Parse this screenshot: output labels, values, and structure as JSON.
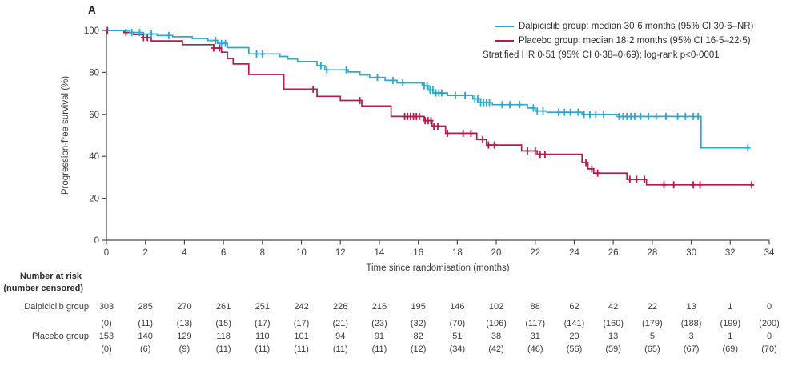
{
  "panel_label": "A",
  "colors": {
    "dalpiciclib": "#2aa8cd",
    "placebo": "#b81950",
    "axis": "#4a4a4a",
    "text": "#3b3b3b"
  },
  "legend": {
    "items": [
      {
        "label": "Dalpiciclib group: median 30·6 months (95% CI 30·6–NR)",
        "color_key": "dalpiciclib"
      },
      {
        "label": "Placebo group: median 18·2 months (95% CI 16·5–22·5)",
        "color_key": "placebo"
      }
    ],
    "note": "Stratified HR 0·51 (95% CI 0·38–0·69); log-rank p<0·0001"
  },
  "chart_data": {
    "type": "line",
    "subtype": "kaplan-meier-step",
    "title": "",
    "xlabel": "Time since randomisation (months)",
    "ylabel": "Progression-free survival (%)",
    "xlim": [
      0,
      34
    ],
    "ylim": [
      0,
      100
    ],
    "xticks": [
      0,
      2,
      4,
      6,
      8,
      10,
      12,
      14,
      16,
      18,
      20,
      22,
      24,
      26,
      28,
      30,
      32,
      34
    ],
    "yticks": [
      0,
      20,
      40,
      60,
      80,
      100
    ],
    "grid": false,
    "legend_position": "top-right",
    "series": [
      {
        "name": "Dalpiciclib group",
        "color_key": "dalpiciclib",
        "median_months": "30·6",
        "ci": "30·6–NR",
        "steps": [
          [
            0,
            100
          ],
          [
            1.2,
            99
          ],
          [
            1.9,
            98.3
          ],
          [
            2.6,
            97.6
          ],
          [
            3.4,
            97
          ],
          [
            4.4,
            96.2
          ],
          [
            5.2,
            95.2
          ],
          [
            5.7,
            93.8
          ],
          [
            6.2,
            91.8
          ],
          [
            7.3,
            88.8
          ],
          [
            8.9,
            87.6
          ],
          [
            9.3,
            86.4
          ],
          [
            9.8,
            85.2
          ],
          [
            10.8,
            83.2
          ],
          [
            11.2,
            81.2
          ],
          [
            12.4,
            80.2
          ],
          [
            13,
            78.8
          ],
          [
            13.5,
            77.6
          ],
          [
            14.3,
            76.2
          ],
          [
            14.9,
            75
          ],
          [
            16.2,
            73.6
          ],
          [
            16.5,
            71.6
          ],
          [
            16.9,
            70.2
          ],
          [
            17.5,
            69
          ],
          [
            18.8,
            67.4
          ],
          [
            19.2,
            65.6
          ],
          [
            19.8,
            64.6
          ],
          [
            21.6,
            63
          ],
          [
            22,
            61.6
          ],
          [
            22.6,
            61
          ],
          [
            24.4,
            60
          ],
          [
            26.3,
            59
          ],
          [
            30.5,
            44
          ],
          [
            33,
            44
          ]
        ],
        "censor_times": [
          1.3,
          1.7,
          2.3,
          3.2,
          5.6,
          5.9,
          6.1,
          7.7,
          8.0,
          11.0,
          11.3,
          12.3,
          13.9,
          14.7,
          15.2,
          16.3,
          16.45,
          16.6,
          16.75,
          16.9,
          17.05,
          17.2,
          17.9,
          18.4,
          18.9,
          19.05,
          19.2,
          19.35,
          19.5,
          19.65,
          20.3,
          20.7,
          21.2,
          21.9,
          22.1,
          22.4,
          23.2,
          23.5,
          23.8,
          24.2,
          24.5,
          24.8,
          25.1,
          25.5,
          26.3,
          26.5,
          26.7,
          26.9,
          27.1,
          27.4,
          27.8,
          28.2,
          28.7,
          29.3,
          29.7,
          30.1,
          30.35,
          32.9
        ]
      },
      {
        "name": "Placebo group",
        "color_key": "placebo",
        "median_months": "18·2",
        "ci": "16·5–22·5",
        "steps": [
          [
            0,
            100
          ],
          [
            0.9,
            99
          ],
          [
            1.4,
            98
          ],
          [
            1.9,
            96.6
          ],
          [
            2.3,
            95
          ],
          [
            3.9,
            93.2
          ],
          [
            5.5,
            91.6
          ],
          [
            5.9,
            89.6
          ],
          [
            6.2,
            86.6
          ],
          [
            6.5,
            84
          ],
          [
            7.3,
            79
          ],
          [
            9.1,
            72
          ],
          [
            10.8,
            68.6
          ],
          [
            12,
            66.6
          ],
          [
            13.1,
            64
          ],
          [
            14.6,
            59
          ],
          [
            16.3,
            57
          ],
          [
            16.7,
            54.4
          ],
          [
            17.4,
            51
          ],
          [
            19,
            48
          ],
          [
            19.5,
            45.4
          ],
          [
            21.3,
            42.6
          ],
          [
            22.1,
            41
          ],
          [
            24.4,
            37
          ],
          [
            24.7,
            34
          ],
          [
            25,
            32
          ],
          [
            26.7,
            29
          ],
          [
            27.7,
            26.4
          ],
          [
            33.1,
            26.4
          ]
        ],
        "censor_times": [
          0.05,
          1.0,
          1.9,
          2.1,
          5.5,
          5.8,
          10.6,
          13.0,
          15.3,
          15.45,
          15.6,
          15.75,
          15.9,
          16.05,
          16.35,
          16.5,
          16.65,
          16.8,
          17.0,
          17.5,
          18.3,
          18.7,
          19.3,
          19.6,
          19.9,
          21.6,
          22.0,
          22.25,
          22.5,
          24.6,
          24.9,
          25.2,
          26.85,
          27.2,
          27.6,
          28.6,
          29.1,
          30.1,
          30.45,
          33.1
        ]
      }
    ]
  },
  "risk_table": {
    "title": "Number at risk",
    "subtitle": "(number censored)",
    "timepoints": [
      0,
      2,
      4,
      6,
      8,
      10,
      12,
      14,
      16,
      18,
      20,
      22,
      24,
      26,
      28,
      30,
      32,
      34
    ],
    "rows": [
      {
        "label": "Dalpiciclib group",
        "at_risk": [
          303,
          285,
          270,
          261,
          251,
          242,
          226,
          216,
          195,
          146,
          102,
          88,
          62,
          42,
          22,
          13,
          1,
          0
        ],
        "censored": [
          0,
          11,
          13,
          15,
          17,
          17,
          21,
          23,
          32,
          70,
          106,
          117,
          141,
          160,
          179,
          188,
          199,
          200
        ]
      },
      {
        "label": "Placebo group",
        "at_risk": [
          153,
          140,
          129,
          118,
          110,
          101,
          94,
          91,
          82,
          51,
          38,
          31,
          20,
          13,
          5,
          3,
          1,
          0
        ],
        "censored": [
          0,
          6,
          9,
          11,
          11,
          11,
          11,
          11,
          12,
          34,
          42,
          46,
          56,
          59,
          65,
          67,
          69,
          70
        ]
      }
    ]
  }
}
